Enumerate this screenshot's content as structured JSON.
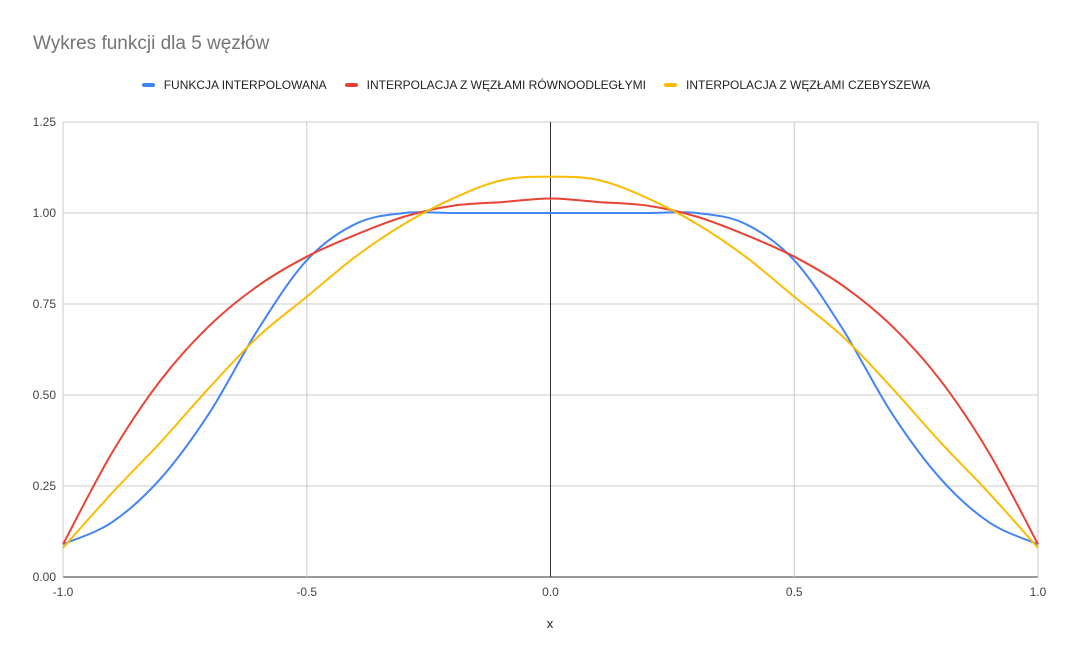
{
  "chart_data": {
    "type": "line",
    "title": "Wykres funkcji dla 5 węzłów",
    "xlabel": "x",
    "ylabel": "",
    "xlim": [
      -1.0,
      1.0
    ],
    "ylim": [
      0.0,
      1.25
    ],
    "x_ticks": [
      "-1.0",
      "-0.5",
      "0.0",
      "0.5",
      "1.0"
    ],
    "y_ticks": [
      "0.00",
      "0.25",
      "0.50",
      "0.75",
      "1.00",
      "1.25"
    ],
    "grid": true,
    "legend_position": "top",
    "x": [
      -1.0,
      -0.9,
      -0.8,
      -0.7,
      -0.6,
      -0.5,
      -0.4,
      -0.3,
      -0.2,
      -0.1,
      0.0,
      0.1,
      0.2,
      0.3,
      0.4,
      0.5,
      0.6,
      0.7,
      0.8,
      0.9,
      1.0
    ],
    "series": [
      {
        "name": "FUNKCJA INTERPOLOWANA",
        "color": "#4285F4",
        "values": [
          0.09,
          0.15,
          0.27,
          0.45,
          0.68,
          0.87,
          0.97,
          1.0,
          1.0,
          1.0,
          1.0,
          1.0,
          1.0,
          1.0,
          0.97,
          0.87,
          0.68,
          0.45,
          0.27,
          0.15,
          0.09
        ]
      },
      {
        "name": "INTERPOLACJA Z WĘZŁAMI RÓWNOODLEGŁYMI",
        "color": "#EA4335",
        "values": [
          0.09,
          0.34,
          0.54,
          0.69,
          0.8,
          0.88,
          0.94,
          0.99,
          1.02,
          1.03,
          1.04,
          1.03,
          1.02,
          0.99,
          0.94,
          0.88,
          0.8,
          0.69,
          0.54,
          0.34,
          0.09
        ]
      },
      {
        "name": "INTERPOLACJA Z WĘZŁAMI CZEBYSZEWA",
        "color": "#FBBC04",
        "values": [
          0.08,
          0.23,
          0.37,
          0.52,
          0.66,
          0.77,
          0.88,
          0.97,
          1.04,
          1.09,
          1.1,
          1.09,
          1.04,
          0.97,
          0.88,
          0.77,
          0.66,
          0.52,
          0.37,
          0.23,
          0.08
        ]
      }
    ]
  }
}
